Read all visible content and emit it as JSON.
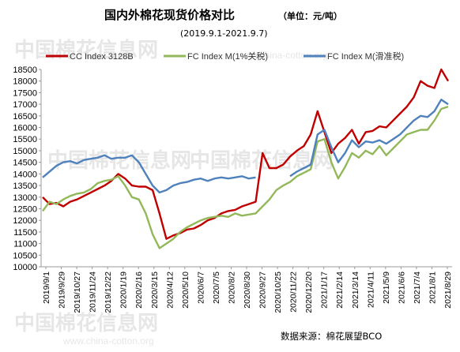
{
  "chart_data": {
    "type": "line",
    "title": "国内外棉花现货价格对比",
    "unit_label": "（单位：元/吨）",
    "subtitle": "(2019.9.1-2021.9.7)",
    "source": "数据来源：棉花展望BCO",
    "watermark": {
      "text": "中国棉花信息网",
      "url": "www.china-cotton.org"
    },
    "ylim": [
      10000,
      18500
    ],
    "yticks": [
      10000,
      10500,
      11000,
      11500,
      12000,
      12500,
      13000,
      13500,
      14000,
      14500,
      15000,
      15500,
      16000,
      16500,
      17000,
      17500,
      18000,
      18500
    ],
    "xlabels": [
      "2019/9/1",
      "2019/9/29",
      "2019/10/27",
      "2019/11/24",
      "2019/12/22",
      "2020/1/19",
      "2020/2/16",
      "2020/3/15",
      "2020/4/12",
      "2020/5/10",
      "2020/6/7",
      "2020/7/5",
      "2020/8/2",
      "2020/8/30",
      "2020/9/27",
      "2020/10/25",
      "2020/11/22",
      "2020/12/20",
      "2021/1/17",
      "2021/2/14",
      "2021/3/14",
      "2021/4/11",
      "2021/5/9",
      "2021/6/6",
      "2021/7/4",
      "2021/8/1",
      "2021/8/29"
    ],
    "grid": false,
    "legend_position": "top",
    "series": [
      {
        "name": "CC Index 3128B",
        "color": "#c00000",
        "values": [
          13000,
          12700,
          12750,
          12600,
          12800,
          12900,
          13050,
          13200,
          13350,
          13500,
          13700,
          14000,
          13800,
          13500,
          13450,
          13450,
          13300,
          12300,
          11200,
          11350,
          11450,
          11600,
          11650,
          11800,
          12000,
          12100,
          12300,
          12400,
          12450,
          12600,
          12700,
          12800,
          14900,
          14250,
          14250,
          14400,
          14750,
          15000,
          15200,
          15700,
          16700,
          15800,
          14900,
          15300,
          15550,
          15900,
          15300,
          15800,
          15850,
          16050,
          16000,
          16300,
          16600,
          16900,
          17300,
          18000,
          17800,
          17700,
          18500,
          18000
        ]
      },
      {
        "name": "FC Index M(1%关税)",
        "color": "#92b85a",
        "values": [
          12400,
          12800,
          12700,
          12900,
          13050,
          13150,
          13200,
          13350,
          13600,
          13700,
          13750,
          13900,
          13500,
          13000,
          12900,
          12300,
          11400,
          10800,
          11000,
          11200,
          11500,
          11700,
          11850,
          12000,
          12100,
          12150,
          12200,
          12150,
          12300,
          12200,
          12250,
          12300,
          12600,
          12900,
          13300,
          13500,
          13650,
          13900,
          14050,
          14200,
          15400,
          15500,
          14500,
          13800,
          14300,
          14900,
          14700,
          15000,
          14850,
          15200,
          14800,
          15100,
          15400,
          15700,
          15800,
          15900,
          15900,
          16300,
          16800,
          16900
        ]
      },
      {
        "name": "FC Index M(滑准税)",
        "color": "#4f81bd",
        "values": [
          13850,
          14100,
          14350,
          14500,
          14550,
          14450,
          14600,
          14650,
          14700,
          14800,
          14650,
          14700,
          14700,
          14800,
          14500,
          14000,
          13500,
          13200,
          13300,
          13500,
          13600,
          13650,
          13750,
          13800,
          13700,
          13800,
          13850,
          13800,
          13850,
          13900,
          13800,
          13850,
          null,
          null,
          null,
          null,
          13900,
          14100,
          14250,
          14400,
          15700,
          15900,
          15150,
          14500,
          14900,
          15450,
          15150,
          15400,
          15350,
          15450,
          15300,
          15500,
          15700,
          16000,
          16300,
          16500,
          16450,
          16700,
          17200,
          17000
        ]
      }
    ]
  }
}
